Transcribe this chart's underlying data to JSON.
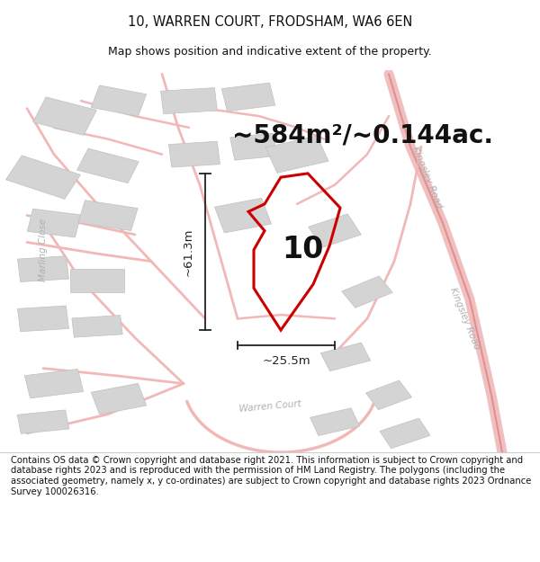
{
  "title": "10, WARREN COURT, FRODSHAM, WA6 6EN",
  "subtitle": "Map shows position and indicative extent of the property.",
  "area_text": "~584m²/~0.144ac.",
  "label_10": "10",
  "dim_height": "~61.3m",
  "dim_width": "~25.5m",
  "footer": "Contains OS data © Crown copyright and database right 2021. This information is subject to Crown copyright and database rights 2023 and is reproduced with the permission of HM Land Registry. The polygons (including the associated geometry, namely x, y co-ordinates) are subject to Crown copyright and database rights 2023 Ordnance Survey 100026316.",
  "bg_color": "#ffffff",
  "map_bg": "#ffffff",
  "road_color": "#f2b8b8",
  "road_thin_color": "#e8a0a0",
  "building_color": "#d4d4d4",
  "building_edge": "#c0c0c0",
  "highlight_color": "#cc0000",
  "dim_color": "#222222",
  "road_label_color": "#b0b0b0",
  "title_fontsize": 10.5,
  "subtitle_fontsize": 9,
  "area_fontsize": 20,
  "label_fontsize": 24,
  "dim_fontsize": 9.5,
  "footer_fontsize": 7.2,
  "road_label_fontsize": 7.5,
  "figwidth": 6.0,
  "figheight": 6.25,
  "dpi": 100
}
